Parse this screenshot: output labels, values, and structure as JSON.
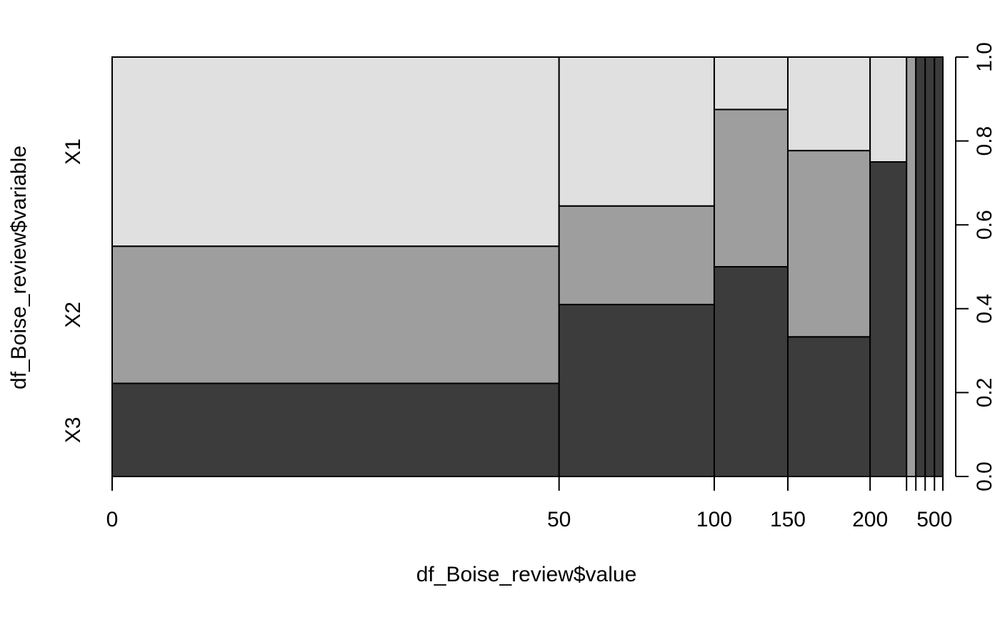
{
  "chart_data": {
    "type": "spineplot",
    "xlabel": "df_Boise_review$value",
    "ylabel": "df_Boise_review$variable",
    "categories": [
      "X3",
      "X2",
      "X1"
    ],
    "category_colors": {
      "X3": "#3c3c3c",
      "X2": "#9e9e9e",
      "X1": "#e0e0e0"
    },
    "bins": [
      {
        "breaks": "0-50",
        "width_fraction": 0.538,
        "proportions": {
          "X3": 0.222,
          "X2": 0.327,
          "X1": 0.451
        }
      },
      {
        "breaks": "50-100",
        "width_fraction": 0.1868,
        "proportions": {
          "X3": 0.41,
          "X2": 0.235,
          "X1": 0.355
        }
      },
      {
        "breaks": "100-150",
        "width_fraction": 0.0886,
        "proportions": {
          "X3": 0.5,
          "X2": 0.375,
          "X1": 0.125
        }
      },
      {
        "breaks": "150-200",
        "width_fraction": 0.099,
        "proportions": {
          "X3": 0.333,
          "X2": 0.444,
          "X1": 0.223
        }
      },
      {
        "breaks": "200-250",
        "width_fraction": 0.0439,
        "proportions": {
          "X3": 0.75,
          "X2": 0.0,
          "X1": 0.25
        }
      },
      {
        "breaks": "250-300",
        "width_fraction": 0.0112,
        "proportions": {
          "X3": 0.0,
          "X2": 1.0,
          "X1": 0.0
        }
      },
      {
        "breaks": "300-350",
        "width_fraction": 0.0112,
        "proportions": {
          "X3": 1.0,
          "X2": 0.0,
          "X1": 0.0
        }
      },
      {
        "breaks": "350-400",
        "width_fraction": 0.0,
        "proportions": {
          "X3": 0.0,
          "X2": 0.0,
          "X1": 0.0
        }
      },
      {
        "breaks": "400-450",
        "width_fraction": 0.0112,
        "proportions": {
          "X3": 1.0,
          "X2": 0.0,
          "X1": 0.0
        }
      },
      {
        "breaks": "450-500",
        "width_fraction": 0.0,
        "proportions": {
          "X3": 0.0,
          "X2": 0.0,
          "X1": 0.0
        }
      },
      {
        "breaks": "500-550",
        "width_fraction": 0.0101,
        "proportions": {
          "X3": 1.0,
          "X2": 0.0,
          "X1": 0.0
        }
      }
    ],
    "x_tick_labels": [
      "0",
      "50",
      "100",
      "150",
      "200",
      "500"
    ],
    "y_ticks": [
      0.0,
      0.2,
      0.4,
      0.6,
      0.8,
      1.0
    ],
    "y_tick_labels": [
      "0.0",
      "0.2",
      "0.4",
      "0.6",
      "0.8",
      "1.0"
    ],
    "ylim": [
      0,
      1
    ],
    "grid": false,
    "legend": "none"
  }
}
